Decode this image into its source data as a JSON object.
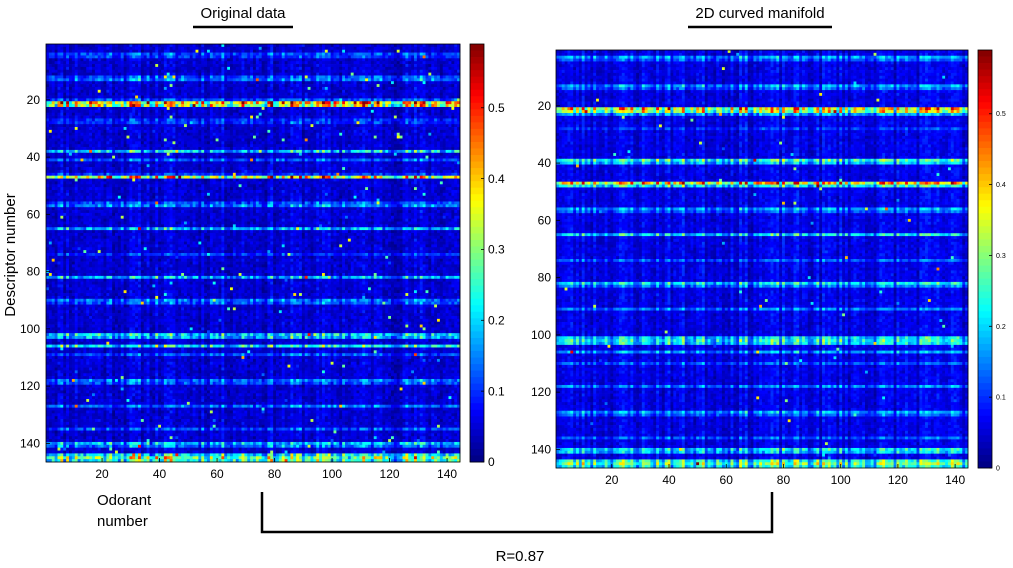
{
  "chart_data": [
    {
      "type": "heatmap",
      "title": "Original data",
      "xlabel": "Odorant number",
      "ylabel": "Descriptor number",
      "n_rows": 146,
      "n_cols": 144,
      "x_ticks": [
        20,
        40,
        60,
        80,
        100,
        120,
        140
      ],
      "y_ticks": [
        20,
        40,
        60,
        80,
        100,
        120,
        140
      ],
      "xlim": [
        1,
        144
      ],
      "ylim": [
        1,
        146
      ],
      "colorbar": {
        "min": 0,
        "max": 0.59,
        "ticks": [
          "0",
          "0.1",
          "0.2",
          "0.3",
          "0.4",
          "0.5"
        ],
        "tick_values": [
          0,
          0.1,
          0.2,
          0.3,
          0.4,
          0.5
        ]
      },
      "row_profile": [
        {
          "row": 4,
          "level": 0.12
        },
        {
          "row": 5,
          "level": 0.1
        },
        {
          "row": 12,
          "level": 0.12
        },
        {
          "row": 13,
          "level": 0.14
        },
        {
          "row": 20,
          "level": 0.12
        },
        {
          "row": 21,
          "level": 0.4
        },
        {
          "row": 22,
          "level": 0.34
        },
        {
          "row": 27,
          "level": 0.1
        },
        {
          "row": 28,
          "level": 0.1
        },
        {
          "row": 38,
          "level": 0.2
        },
        {
          "row": 41,
          "level": 0.12
        },
        {
          "row": 46,
          "level": 0.1
        },
        {
          "row": 47,
          "level": 0.36
        },
        {
          "row": 56,
          "level": 0.12
        },
        {
          "row": 57,
          "level": 0.15
        },
        {
          "row": 65,
          "level": 0.18
        },
        {
          "row": 74,
          "level": 0.1
        },
        {
          "row": 82,
          "level": 0.18
        },
        {
          "row": 90,
          "level": 0.14
        },
        {
          "row": 91,
          "level": 0.12
        },
        {
          "row": 102,
          "level": 0.2
        },
        {
          "row": 103,
          "level": 0.18
        },
        {
          "row": 106,
          "level": 0.22
        },
        {
          "row": 109,
          "level": 0.12
        },
        {
          "row": 118,
          "level": 0.14
        },
        {
          "row": 119,
          "level": 0.12
        },
        {
          "row": 127,
          "level": 0.14
        },
        {
          "row": 135,
          "level": 0.12
        },
        {
          "row": 140,
          "level": 0.18
        },
        {
          "row": 141,
          "level": 0.14
        },
        {
          "row": 144,
          "level": 0.22
        },
        {
          "row": 145,
          "level": 0.3
        },
        {
          "row": 146,
          "level": 0.26
        }
      ],
      "background_level": 0.05,
      "noise": 0.55,
      "seed": 11
    },
    {
      "type": "heatmap",
      "title": "2D curved manifold",
      "n_rows": 146,
      "n_cols": 144,
      "x_ticks": [
        20,
        40,
        60,
        80,
        100,
        120,
        140
      ],
      "y_ticks": [
        20,
        40,
        60,
        80,
        100,
        120,
        140
      ],
      "xlim": [
        1,
        144
      ],
      "ylim": [
        1,
        146
      ],
      "colorbar": {
        "min": 0,
        "max": 0.59,
        "ticks": [
          "0",
          "0.1",
          "0.2",
          "0.3",
          "0.4",
          "0.5"
        ],
        "tick_values": [
          0,
          0.1,
          0.2,
          0.3,
          0.4,
          0.5
        ]
      },
      "row_profile": [
        {
          "row": 3,
          "level": 0.16
        },
        {
          "row": 4,
          "level": 0.12
        },
        {
          "row": 13,
          "level": 0.16
        },
        {
          "row": 14,
          "level": 0.12
        },
        {
          "row": 21,
          "level": 0.36
        },
        {
          "row": 22,
          "level": 0.32
        },
        {
          "row": 23,
          "level": 0.16
        },
        {
          "row": 28,
          "level": 0.1
        },
        {
          "row": 39,
          "level": 0.24
        },
        {
          "row": 40,
          "level": 0.18
        },
        {
          "row": 47,
          "level": 0.38
        },
        {
          "row": 48,
          "level": 0.22
        },
        {
          "row": 56,
          "level": 0.16
        },
        {
          "row": 57,
          "level": 0.12
        },
        {
          "row": 65,
          "level": 0.2
        },
        {
          "row": 74,
          "level": 0.12
        },
        {
          "row": 82,
          "level": 0.2
        },
        {
          "row": 83,
          "level": 0.14
        },
        {
          "row": 91,
          "level": 0.14
        },
        {
          "row": 101,
          "level": 0.2
        },
        {
          "row": 102,
          "level": 0.22
        },
        {
          "row": 103,
          "level": 0.2
        },
        {
          "row": 106,
          "level": 0.16
        },
        {
          "row": 110,
          "level": 0.12
        },
        {
          "row": 118,
          "level": 0.14
        },
        {
          "row": 127,
          "level": 0.16
        },
        {
          "row": 128,
          "level": 0.12
        },
        {
          "row": 136,
          "level": 0.12
        },
        {
          "row": 140,
          "level": 0.2
        },
        {
          "row": 141,
          "level": 0.18
        },
        {
          "row": 144,
          "level": 0.24
        },
        {
          "row": 145,
          "level": 0.28
        },
        {
          "row": 146,
          "level": 0.22
        }
      ],
      "background_level": 0.06,
      "noise": 0.25,
      "seed": 23
    }
  ],
  "comparison": {
    "label": "R=0.87"
  }
}
